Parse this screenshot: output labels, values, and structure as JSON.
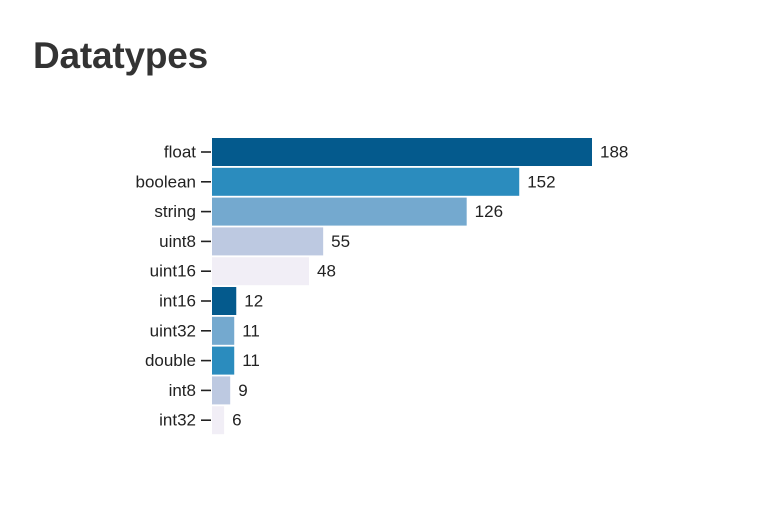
{
  "header": {
    "title": "Datatypes"
  },
  "chart_data": {
    "type": "bar",
    "orientation": "horizontal",
    "title": "Datatypes",
    "xlabel": "",
    "ylabel": "",
    "xlim": [
      0,
      188
    ],
    "grid": false,
    "categories": [
      "float",
      "boolean",
      "string",
      "uint8",
      "uint16",
      "int16",
      "uint32",
      "double",
      "int8",
      "int32"
    ],
    "values": [
      188,
      152,
      126,
      55,
      48,
      12,
      11,
      11,
      9,
      6
    ],
    "colors": [
      "#045a8d",
      "#2b8cbe",
      "#74a9cf",
      "#bdc9e1",
      "#f1eef6",
      "#045a8d",
      "#74a9cf",
      "#2b8cbe",
      "#bdc9e1",
      "#f1eef6"
    ]
  }
}
